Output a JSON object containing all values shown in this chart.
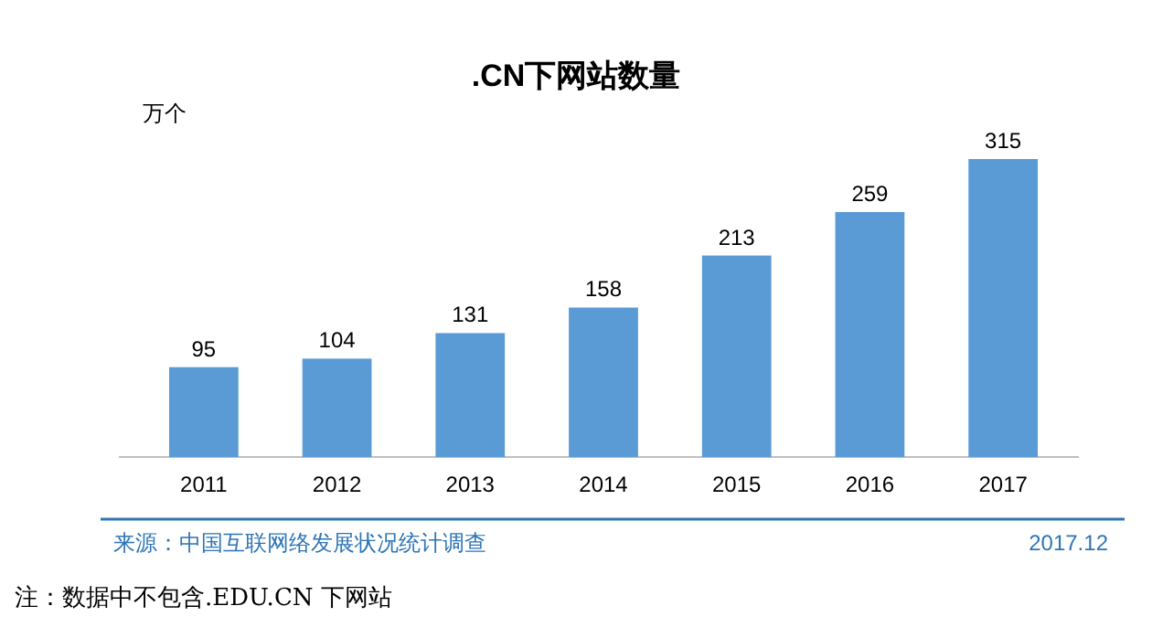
{
  "chart_data": {
    "type": "bar",
    "title": ".CN下网站数量",
    "ylabel": "万个",
    "categories": [
      "2011",
      "2012",
      "2013",
      "2014",
      "2015",
      "2016",
      "2017"
    ],
    "values": [
      95,
      104,
      131,
      158,
      213,
      259,
      315
    ],
    "color": "#5b9bd5",
    "data_labels": true,
    "annotations": [
      "来源：中国互联网络发展状况统计调查",
      "2017.12",
      "注：数据中不包含.EDU.CN 下网站"
    ]
  }
}
